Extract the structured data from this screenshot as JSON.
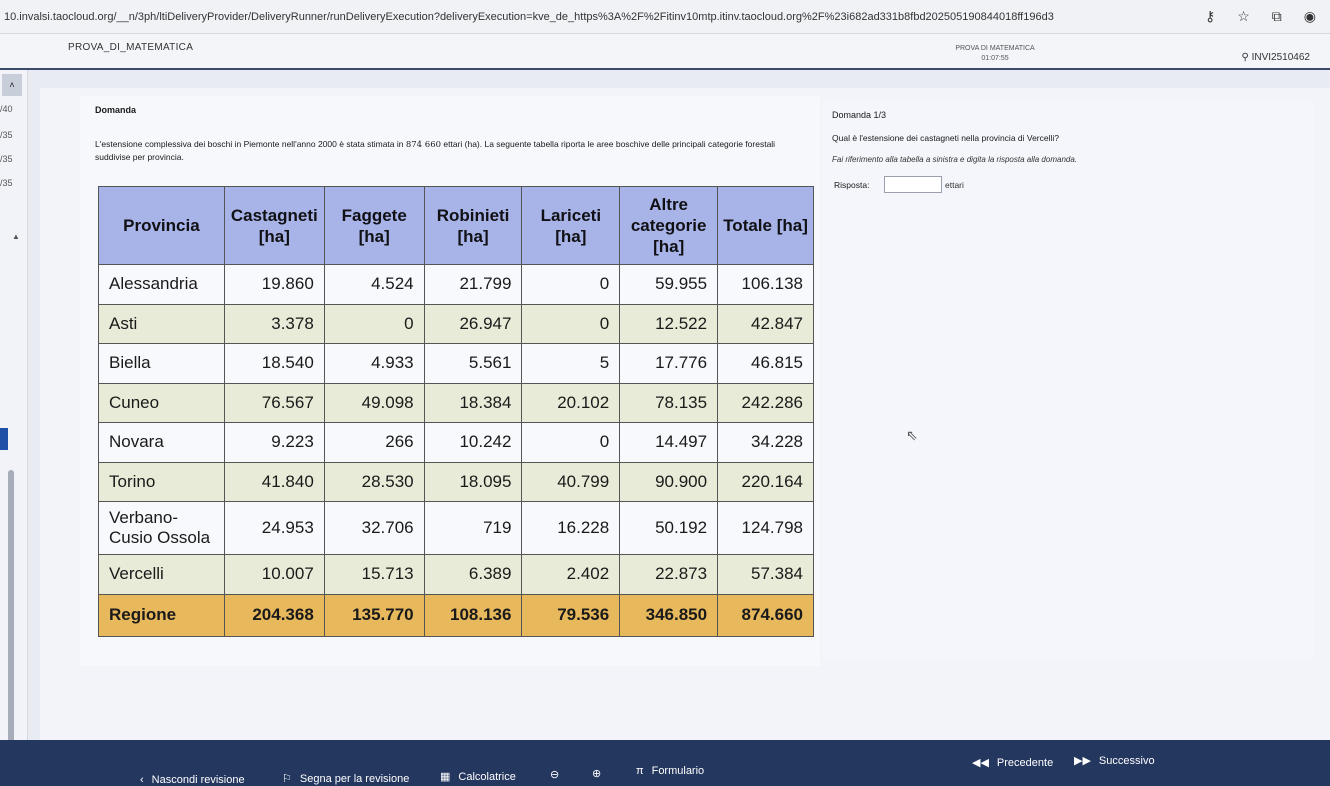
{
  "browser": {
    "url": "10.invalsi.taocloud.org/__n/3ph/ltiDeliveryProvider/DeliveryRunner/runDeliveryExecution?deliveryExecution=kve_de_https%3A%2F%2Fitinv10mtp.itinv.taocloud.org%2F%23i682ad331b8fbd202505190844018ff196d3"
  },
  "header": {
    "title": "PROVA_DI_MATEMATICA",
    "timer_label": "PROVA DI MATEMATICA",
    "timer": "01:07:55",
    "user_code": "INVI2510462"
  },
  "nav": {
    "items": [
      "/40",
      "/35",
      "/35",
      "/35"
    ]
  },
  "question": {
    "label": "Domanda",
    "intro_before": "L'estensione complessiva dei boschi in Piemonte nell'anno 2000 è stata stimata in ",
    "intro_value": "874 660",
    "intro_after": " ettari (ha). La seguente tabella riporta le aree boschive delle principali categorie forestali suddivise per provincia.",
    "table": {
      "headers": [
        "Provincia",
        "Castagneti [ha]",
        "Faggete [ha]",
        "Robinieti [ha]",
        "Lariceti [ha]",
        "Altre categorie [ha]",
        "Totale [ha]"
      ],
      "rows": [
        [
          "Alessandria",
          "19.860",
          "4.524",
          "21.799",
          "0",
          "59.955",
          "106.138"
        ],
        [
          "Asti",
          "3.378",
          "0",
          "26.947",
          "0",
          "12.522",
          "42.847"
        ],
        [
          "Biella",
          "18.540",
          "4.933",
          "5.561",
          "5",
          "17.776",
          "46.815"
        ],
        [
          "Cuneo",
          "76.567",
          "49.098",
          "18.384",
          "20.102",
          "78.135",
          "242.286"
        ],
        [
          "Novara",
          "9.223",
          "266",
          "10.242",
          "0",
          "14.497",
          "34.228"
        ],
        [
          "Torino",
          "41.840",
          "28.530",
          "18.095",
          "40.799",
          "90.900",
          "220.164"
        ],
        [
          "Verbano-Cusio Ossola",
          "24.953",
          "32.706",
          "719",
          "16.228",
          "50.192",
          "124.798"
        ],
        [
          "Vercelli",
          "10.007",
          "15.713",
          "6.389",
          "2.402",
          "22.873",
          "57.384"
        ]
      ],
      "total": [
        "Regione",
        "204.368",
        "135.770",
        "108.136",
        "79.536",
        "346.850",
        "874.660"
      ]
    }
  },
  "answer_panel": {
    "label": "Domanda 1/3",
    "question": "Qual è l'estensione dei castagneti nella provincia di Vercelli?",
    "hint": "Fai riferimento alla tabella a sinistra e digita la risposta alla domanda.",
    "answer_label": "Risposta:",
    "answer_value": "",
    "unit": "ettari"
  },
  "footer": {
    "hide_review": "Nascondi revisione",
    "flag_review": "Segna per la revisione",
    "calculator": "Calcolatrice",
    "formulas": "Formulario",
    "previous": "Precedente",
    "next": "Successivo"
  }
}
